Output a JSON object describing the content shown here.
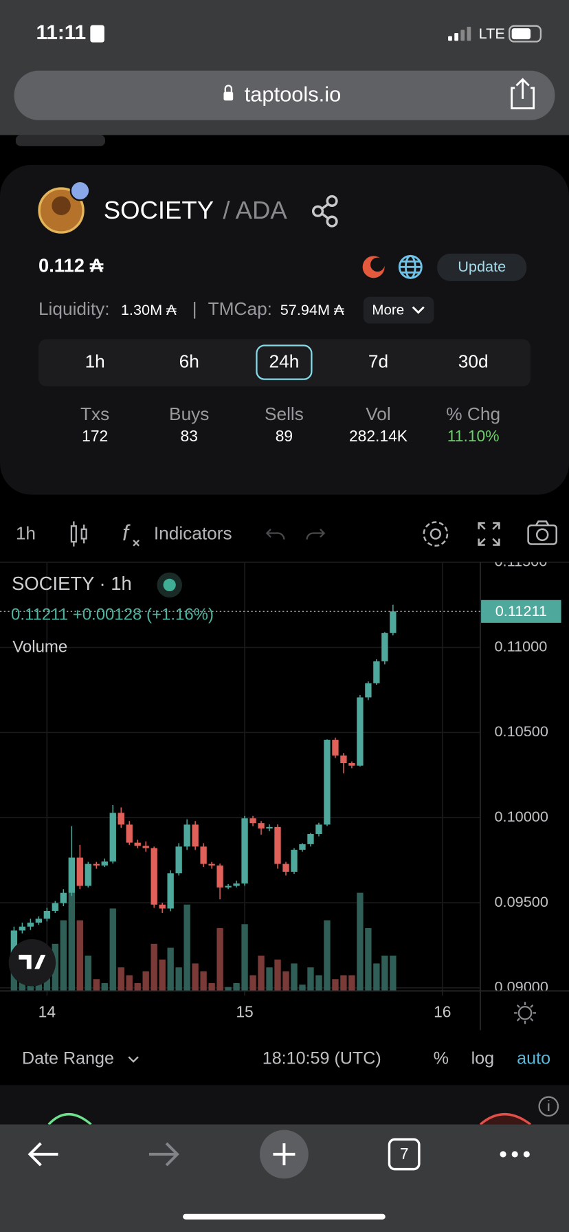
{
  "status_bar": {
    "time": "11:11",
    "network": "LTE"
  },
  "browser": {
    "url": "taptools.io",
    "tab_count": "7"
  },
  "token": {
    "name": "SOCIETY",
    "pair": "/ ADA",
    "price": "0.112 ₳",
    "update": "Update",
    "liquidity_label": "Liquidity:",
    "liquidity": "1.30M ₳",
    "separator": "|",
    "tmcap_label": "TMCap:",
    "tmcap": "57.94M ₳",
    "more": "More"
  },
  "timeframes": {
    "options": [
      "1h",
      "6h",
      "24h",
      "7d",
      "30d"
    ],
    "selected": "24h"
  },
  "stats": [
    {
      "label": "Txs",
      "value": "172"
    },
    {
      "label": "Buys",
      "value": "83"
    },
    {
      "label": "Sells",
      "value": "89"
    },
    {
      "label": "Vol",
      "value": "282.14K"
    },
    {
      "label": "% Chg",
      "value": "11.10%"
    }
  ],
  "toolbar": {
    "interval": "1h",
    "indicators": "Indicators"
  },
  "chart_data": {
    "type": "candlestick",
    "title": "SOCIETY · 1h",
    "legend": "0.11211 +0.00128 (+1.16%)",
    "volume_label": "Volume",
    "price_tag": "0.11211",
    "categories": [
      null,
      null,
      null,
      null,
      null,
      null,
      null,
      null,
      null,
      null,
      null,
      null,
      null,
      null,
      null,
      null,
      null,
      null,
      null,
      null,
      null,
      null,
      null,
      null,
      null,
      null,
      null,
      null,
      null,
      null,
      null,
      null,
      null,
      null,
      null,
      null,
      null,
      null,
      null,
      null,
      null,
      null,
      null,
      null,
      null,
      null,
      null
    ],
    "open": [
      0.09198,
      0.09337,
      0.0936,
      0.09383,
      0.09406,
      0.09452,
      0.09498,
      0.09558,
      0.09765,
      0.09599,
      0.09728,
      0.09719,
      0.09742,
      0.10028,
      0.09959,
      0.09853,
      0.09834,
      0.09821,
      0.09489,
      0.09466,
      0.09673,
      0.0983,
      0.09959,
      0.0983,
      0.09728,
      0.09719,
      0.0959,
      0.09599,
      0.09613,
      0.09996,
      0.09968,
      0.09936,
      0.09945,
      0.09728,
      0.09682,
      0.09811,
      0.09844,
      0.09904,
      0.09959,
      0.10457,
      0.10365,
      0.1032,
      0.10305,
      0.10706,
      0.10789,
      0.10918,
      0.11084
    ],
    "high": [
      0.0936,
      0.09383,
      0.09406,
      0.0942,
      0.0947,
      0.0951,
      0.0958,
      0.0995,
      0.0984,
      0.0974,
      0.0974,
      0.0976,
      0.10074,
      0.1006,
      0.0998,
      0.0987,
      0.0986,
      0.0983,
      0.095,
      0.0969,
      0.0985,
      0.0999,
      0.0998,
      0.0985,
      0.0974,
      0.0973,
      0.0961,
      0.0963,
      0.1001,
      0.1001,
      0.0998,
      0.0996,
      0.0996,
      0.0974,
      0.0982,
      0.0985,
      0.0991,
      0.0997,
      0.1046,
      0.1047,
      0.1038,
      0.1033,
      0.1072,
      0.108,
      0.1093,
      0.1109,
      0.1125
    ],
    "low": [
      0.0915,
      0.0932,
      0.0934,
      0.0937,
      0.0939,
      0.0944,
      0.0948,
      0.0954,
      0.0958,
      0.0959,
      0.097,
      0.0971,
      0.0973,
      0.0994,
      0.0984,
      0.0982,
      0.098,
      0.0947,
      0.0944,
      0.0945,
      0.0966,
      0.0981,
      0.0981,
      0.0971,
      0.097,
      0.0952,
      0.0958,
      0.0959,
      0.096,
      0.0995,
      0.099,
      0.0992,
      0.097,
      0.0966,
      0.0967,
      0.098,
      0.0983,
      0.0989,
      0.0995,
      0.1035,
      0.1026,
      0.1029,
      0.103,
      0.1069,
      0.1078,
      0.109,
      0.1107
    ],
    "close": [
      0.09337,
      0.0936,
      0.09383,
      0.09406,
      0.09452,
      0.09498,
      0.09558,
      0.09765,
      0.09599,
      0.09728,
      0.09719,
      0.09742,
      0.10028,
      0.09959,
      0.09853,
      0.09834,
      0.09821,
      0.09489,
      0.09466,
      0.09673,
      0.0983,
      0.09959,
      0.0983,
      0.09728,
      0.09719,
      0.0959,
      0.09599,
      0.09613,
      0.09996,
      0.09968,
      0.09936,
      0.09945,
      0.09728,
      0.09682,
      0.09811,
      0.09844,
      0.09904,
      0.09959,
      0.10457,
      0.10365,
      0.1032,
      0.10305,
      0.10706,
      0.10789,
      0.10918,
      0.11084,
      0.11211
    ],
    "volume": [
      50,
      20,
      15,
      30,
      40,
      60,
      90,
      125,
      90,
      45,
      15,
      10,
      105,
      30,
      20,
      10,
      25,
      60,
      40,
      55,
      30,
      110,
      35,
      25,
      10,
      80,
      5,
      10,
      85,
      20,
      45,
      30,
      40,
      25,
      35,
      8,
      30,
      20,
      90,
      15,
      20,
      20,
      125,
      80,
      35,
      45,
      45
    ],
    "volume_ylim": [
      0,
      546
    ],
    "up_color": "#4fa89c",
    "down_color": "#e0605a",
    "volume_up_color": "#2f5f56",
    "volume_down_color": "#7a3a37",
    "ylim": [
      0.08982,
      0.115
    ],
    "yticks": [
      {
        "value": 0.09,
        "label": "0.09000"
      },
      {
        "value": 0.095,
        "label": "0.09500"
      },
      {
        "value": 0.1,
        "label": "0.10000"
      },
      {
        "value": 0.105,
        "label": "0.10500"
      },
      {
        "value": 0.11,
        "label": "0.11000"
      },
      {
        "value": 0.115,
        "label": "0.11500"
      }
    ],
    "xlim": [
      -1.7,
      56.6
    ],
    "xticks": [
      {
        "value": 4,
        "label": "14"
      },
      {
        "value": 28,
        "label": "15"
      },
      {
        "value": 52,
        "label": "16"
      }
    ],
    "grid": true
  },
  "footer": {
    "date_range": "Date Range",
    "time": "18:10:59 (UTC)",
    "percent": "%",
    "log": "log",
    "auto": "auto"
  }
}
